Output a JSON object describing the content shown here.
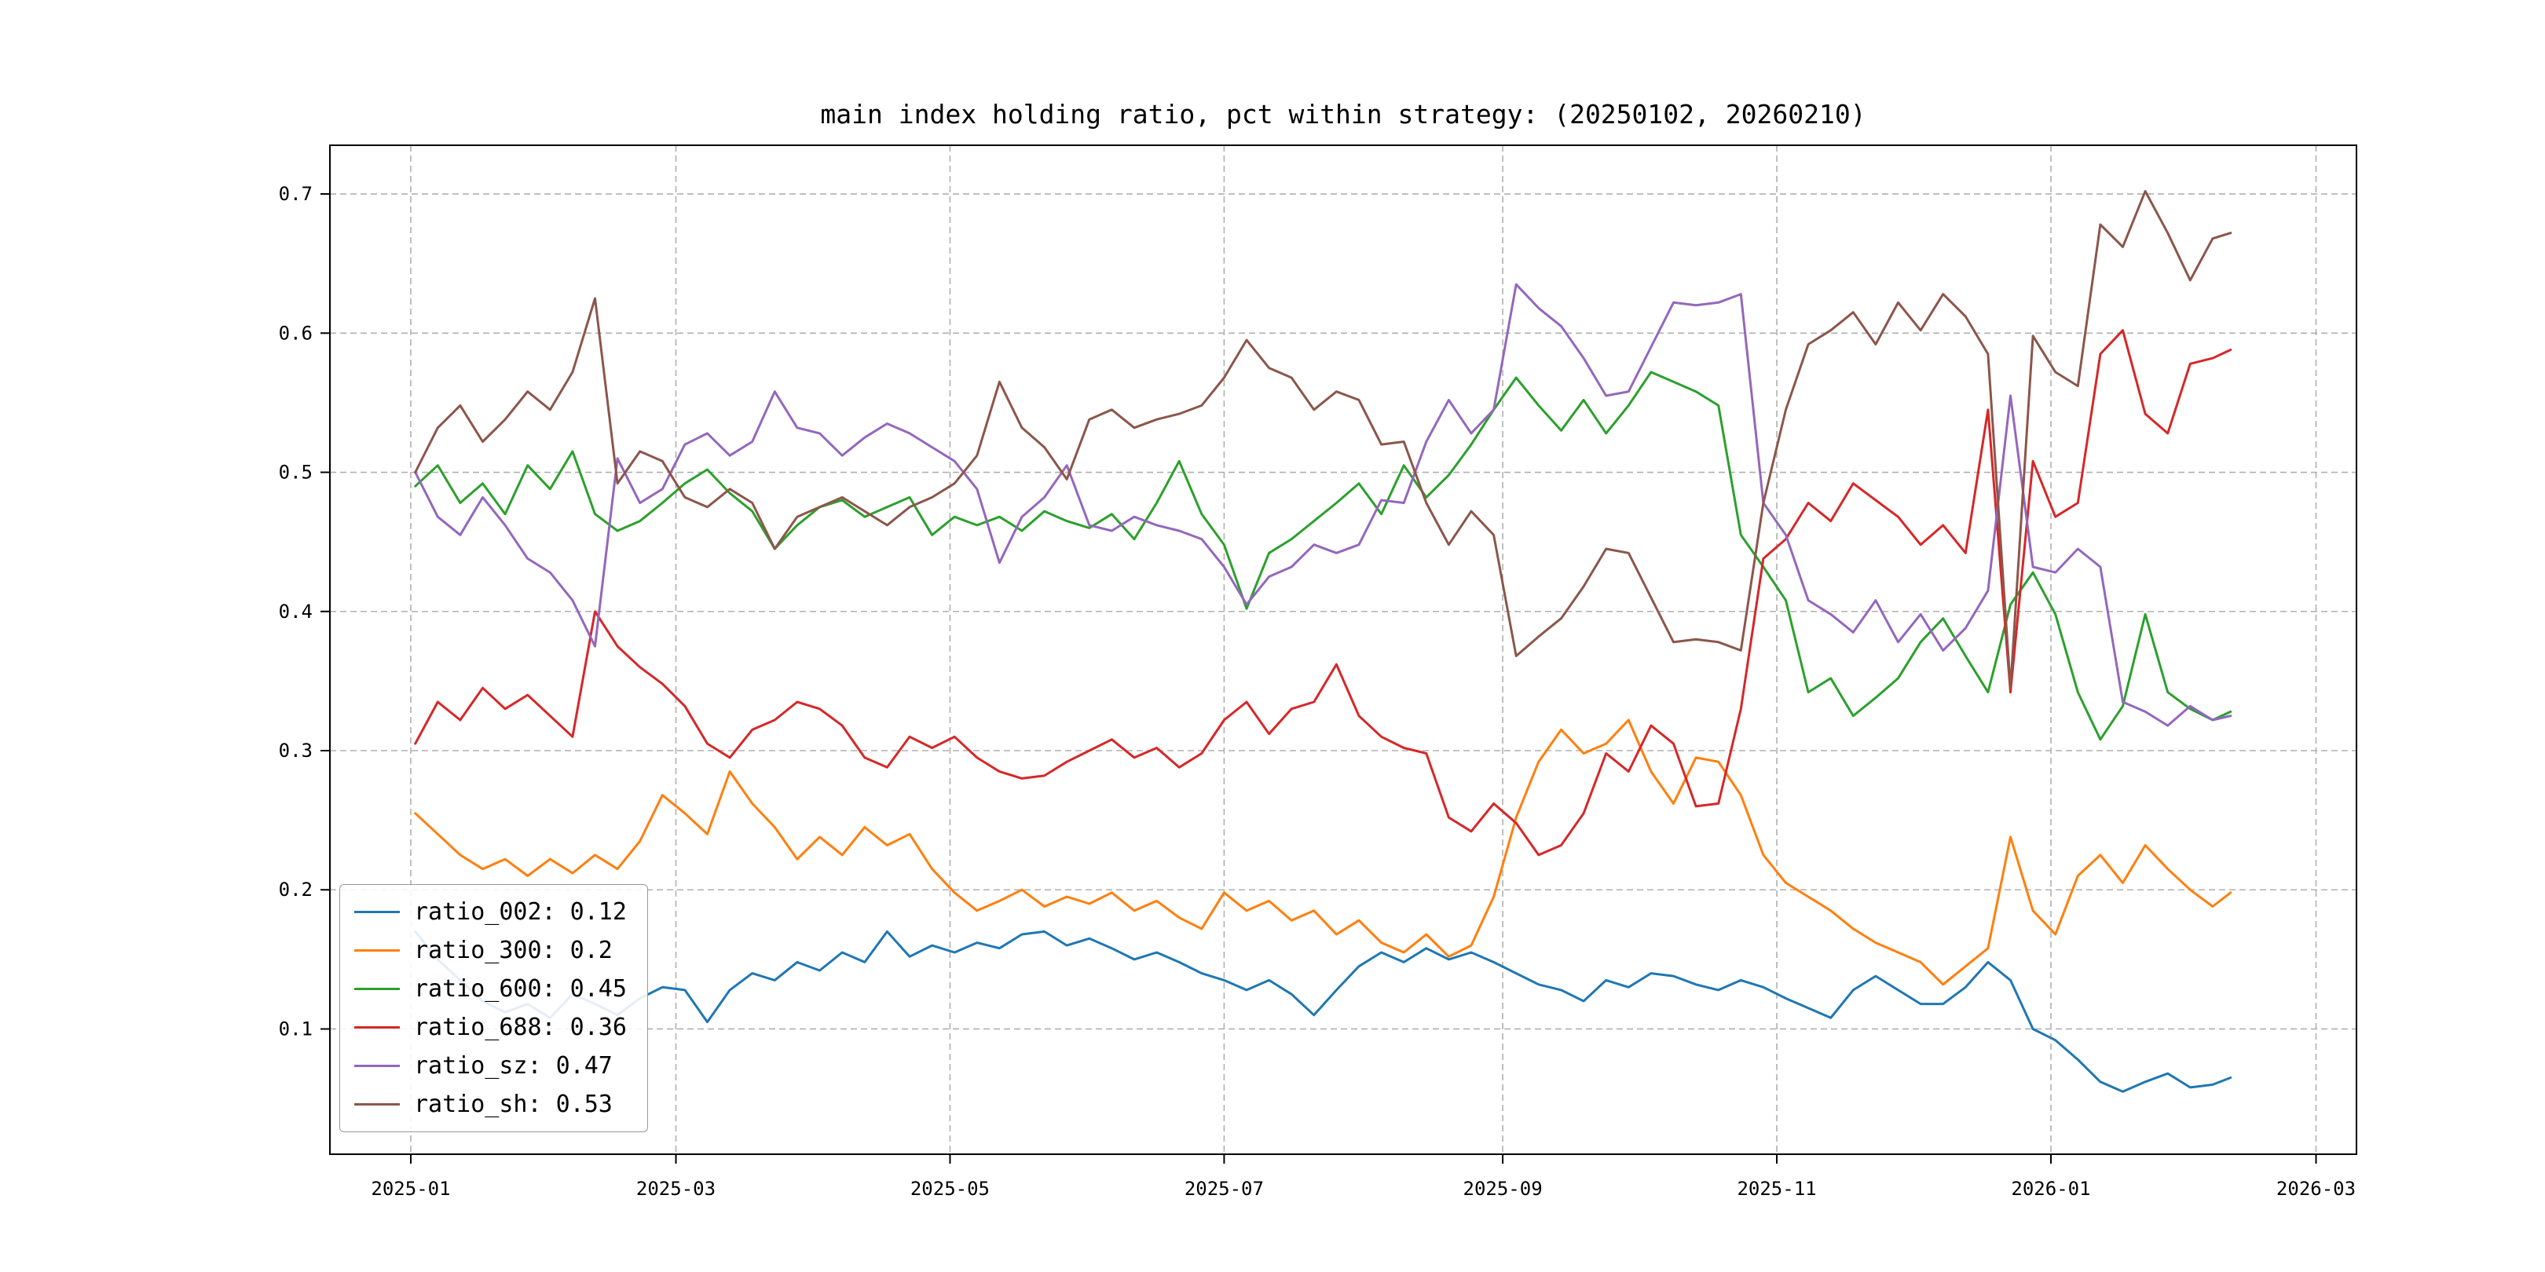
{
  "window": {
    "background": "#ffffff"
  },
  "chart_data": {
    "type": "line",
    "title": "main index holding ratio, pct within strategy: (20250102, 20260210)",
    "xlabel": "",
    "ylabel": "",
    "grid": {
      "on": true,
      "linestyle": "dashed",
      "color": "#b0b0b0"
    },
    "legend_position": "lower-left",
    "x_axis": {
      "unit": "days since 2025-01-01",
      "tick_days": [
        0,
        59,
        120,
        181,
        243,
        304,
        365,
        424
      ],
      "tick_labels": [
        "2025-01",
        "2025-03",
        "2025-05",
        "2025-07",
        "2025-09",
        "2025-11",
        "2026-01",
        "2026-03"
      ],
      "lim": [
        -18,
        433
      ]
    },
    "y_axis": {
      "ticks": [
        0.1,
        0.2,
        0.3,
        0.4,
        0.5,
        0.6,
        0.7
      ],
      "tick_labels": [
        "0.1",
        "0.2",
        "0.3",
        "0.4",
        "0.5",
        "0.6",
        "0.7"
      ],
      "lim": [
        0.01,
        0.735
      ]
    },
    "x_days": [
      1,
      6,
      11,
      16,
      21,
      26,
      31,
      36,
      41,
      46,
      51,
      56,
      61,
      66,
      71,
      76,
      81,
      86,
      91,
      96,
      101,
      106,
      111,
      116,
      121,
      126,
      131,
      136,
      141,
      146,
      151,
      156,
      161,
      166,
      171,
      176,
      181,
      186,
      191,
      196,
      201,
      206,
      211,
      216,
      221,
      226,
      231,
      236,
      241,
      246,
      251,
      256,
      261,
      266,
      271,
      276,
      281,
      286,
      291,
      296,
      301,
      306,
      311,
      316,
      321,
      326,
      331,
      336,
      341,
      346,
      351,
      356,
      361,
      366,
      371,
      376,
      381,
      386,
      391,
      396,
      401,
      405
    ],
    "series": [
      {
        "name": "ratio_002",
        "legend_label": "ratio_002: 0.12",
        "color": "#1f77b4",
        "values": [
          0.17,
          0.15,
          0.135,
          0.12,
          0.112,
          0.118,
          0.108,
          0.125,
          0.118,
          0.11,
          0.122,
          0.13,
          0.128,
          0.105,
          0.128,
          0.14,
          0.135,
          0.148,
          0.142,
          0.155,
          0.148,
          0.17,
          0.152,
          0.16,
          0.155,
          0.162,
          0.158,
          0.168,
          0.17,
          0.16,
          0.165,
          0.158,
          0.15,
          0.155,
          0.148,
          0.14,
          0.135,
          0.128,
          0.135,
          0.125,
          0.11,
          0.128,
          0.145,
          0.155,
          0.148,
          0.158,
          0.15,
          0.155,
          0.148,
          0.14,
          0.132,
          0.128,
          0.12,
          0.135,
          0.13,
          0.14,
          0.138,
          0.132,
          0.128,
          0.135,
          0.13,
          0.122,
          0.115,
          0.108,
          0.128,
          0.138,
          0.128,
          0.118,
          0.118,
          0.13,
          0.148,
          0.135,
          0.1,
          0.092,
          0.078,
          0.062,
          0.055,
          0.062,
          0.068,
          0.058,
          0.06,
          0.065
        ]
      },
      {
        "name": "ratio_300",
        "legend_label": "ratio_300: 0.2",
        "color": "#ff7f0e",
        "values": [
          0.255,
          0.24,
          0.225,
          0.215,
          0.222,
          0.21,
          0.222,
          0.212,
          0.225,
          0.215,
          0.235,
          0.268,
          0.255,
          0.24,
          0.285,
          0.262,
          0.245,
          0.222,
          0.238,
          0.225,
          0.245,
          0.232,
          0.24,
          0.215,
          0.198,
          0.185,
          0.192,
          0.2,
          0.188,
          0.195,
          0.19,
          0.198,
          0.185,
          0.192,
          0.18,
          0.172,
          0.198,
          0.185,
          0.192,
          0.178,
          0.185,
          0.168,
          0.178,
          0.162,
          0.155,
          0.168,
          0.152,
          0.16,
          0.195,
          0.252,
          0.292,
          0.315,
          0.298,
          0.305,
          0.322,
          0.285,
          0.262,
          0.295,
          0.292,
          0.268,
          0.225,
          0.205,
          0.195,
          0.185,
          0.172,
          0.162,
          0.155,
          0.148,
          0.132,
          0.145,
          0.158,
          0.238,
          0.185,
          0.168,
          0.21,
          0.225,
          0.205,
          0.232,
          0.215,
          0.2,
          0.188,
          0.198
        ]
      },
      {
        "name": "ratio_600",
        "legend_label": "ratio_600: 0.45",
        "color": "#2ca02c",
        "values": [
          0.49,
          0.505,
          0.478,
          0.492,
          0.47,
          0.505,
          0.488,
          0.515,
          0.47,
          0.458,
          0.465,
          0.478,
          0.492,
          0.502,
          0.485,
          0.472,
          0.445,
          0.462,
          0.475,
          0.48,
          0.468,
          0.475,
          0.482,
          0.455,
          0.468,
          0.462,
          0.468,
          0.458,
          0.472,
          0.465,
          0.46,
          0.47,
          0.452,
          0.478,
          0.508,
          0.47,
          0.448,
          0.402,
          0.442,
          0.452,
          0.465,
          0.478,
          0.492,
          0.47,
          0.505,
          0.482,
          0.498,
          0.52,
          0.545,
          0.568,
          0.548,
          0.53,
          0.552,
          0.528,
          0.548,
          0.572,
          0.565,
          0.558,
          0.548,
          0.455,
          0.432,
          0.408,
          0.342,
          0.352,
          0.325,
          0.338,
          0.352,
          0.378,
          0.395,
          0.368,
          0.342,
          0.405,
          0.428,
          0.398,
          0.342,
          0.308,
          0.332,
          0.398,
          0.342,
          0.33,
          0.322,
          0.328
        ]
      },
      {
        "name": "ratio_688",
        "legend_label": "ratio_688: 0.36",
        "color": "#d62728",
        "values": [
          0.305,
          0.335,
          0.322,
          0.345,
          0.33,
          0.34,
          0.325,
          0.31,
          0.4,
          0.375,
          0.36,
          0.348,
          0.332,
          0.305,
          0.295,
          0.315,
          0.322,
          0.335,
          0.33,
          0.318,
          0.295,
          0.288,
          0.31,
          0.302,
          0.31,
          0.295,
          0.285,
          0.28,
          0.282,
          0.292,
          0.3,
          0.308,
          0.295,
          0.302,
          0.288,
          0.298,
          0.322,
          0.335,
          0.312,
          0.33,
          0.335,
          0.362,
          0.325,
          0.31,
          0.302,
          0.298,
          0.252,
          0.242,
          0.262,
          0.248,
          0.225,
          0.232,
          0.255,
          0.298,
          0.285,
          0.318,
          0.305,
          0.26,
          0.262,
          0.33,
          0.438,
          0.452,
          0.478,
          0.465,
          0.492,
          0.48,
          0.468,
          0.448,
          0.462,
          0.442,
          0.545,
          0.342,
          0.508,
          0.468,
          0.478,
          0.585,
          0.602,
          0.542,
          0.528,
          0.578,
          0.582,
          0.588
        ]
      },
      {
        "name": "ratio_sz",
        "legend_label": "ratio_sz: 0.47",
        "color": "#9467bd",
        "values": [
          0.5,
          0.468,
          0.455,
          0.482,
          0.462,
          0.438,
          0.428,
          0.408,
          0.375,
          0.51,
          0.478,
          0.488,
          0.52,
          0.528,
          0.512,
          0.522,
          0.558,
          0.532,
          0.528,
          0.512,
          0.525,
          0.535,
          0.528,
          0.518,
          0.508,
          0.488,
          0.435,
          0.468,
          0.482,
          0.505,
          0.462,
          0.458,
          0.468,
          0.462,
          0.458,
          0.452,
          0.432,
          0.405,
          0.425,
          0.432,
          0.448,
          0.442,
          0.448,
          0.48,
          0.478,
          0.522,
          0.552,
          0.528,
          0.545,
          0.635,
          0.618,
          0.605,
          0.582,
          0.555,
          0.558,
          0.59,
          0.622,
          0.62,
          0.622,
          0.628,
          0.478,
          0.455,
          0.408,
          0.398,
          0.385,
          0.408,
          0.378,
          0.398,
          0.372,
          0.388,
          0.415,
          0.555,
          0.432,
          0.428,
          0.445,
          0.432,
          0.335,
          0.328,
          0.318,
          0.332,
          0.322,
          0.325
        ]
      },
      {
        "name": "ratio_sh",
        "legend_label": "ratio_sh: 0.53",
        "color": "#8c564b",
        "values": [
          0.5,
          0.532,
          0.548,
          0.522,
          0.538,
          0.558,
          0.545,
          0.572,
          0.625,
          0.492,
          0.515,
          0.508,
          0.482,
          0.475,
          0.488,
          0.478,
          0.445,
          0.468,
          0.475,
          0.482,
          0.472,
          0.462,
          0.475,
          0.482,
          0.492,
          0.512,
          0.565,
          0.532,
          0.518,
          0.495,
          0.538,
          0.545,
          0.532,
          0.538,
          0.542,
          0.548,
          0.568,
          0.595,
          0.575,
          0.568,
          0.545,
          0.558,
          0.552,
          0.52,
          0.522,
          0.478,
          0.448,
          0.472,
          0.455,
          0.368,
          0.382,
          0.395,
          0.418,
          0.445,
          0.442,
          0.41,
          0.378,
          0.38,
          0.378,
          0.372,
          0.478,
          0.545,
          0.592,
          0.602,
          0.615,
          0.592,
          0.622,
          0.602,
          0.628,
          0.612,
          0.585,
          0.345,
          0.598,
          0.572,
          0.562,
          0.678,
          0.662,
          0.702,
          0.672,
          0.638,
          0.668,
          0.672
        ]
      }
    ]
  }
}
